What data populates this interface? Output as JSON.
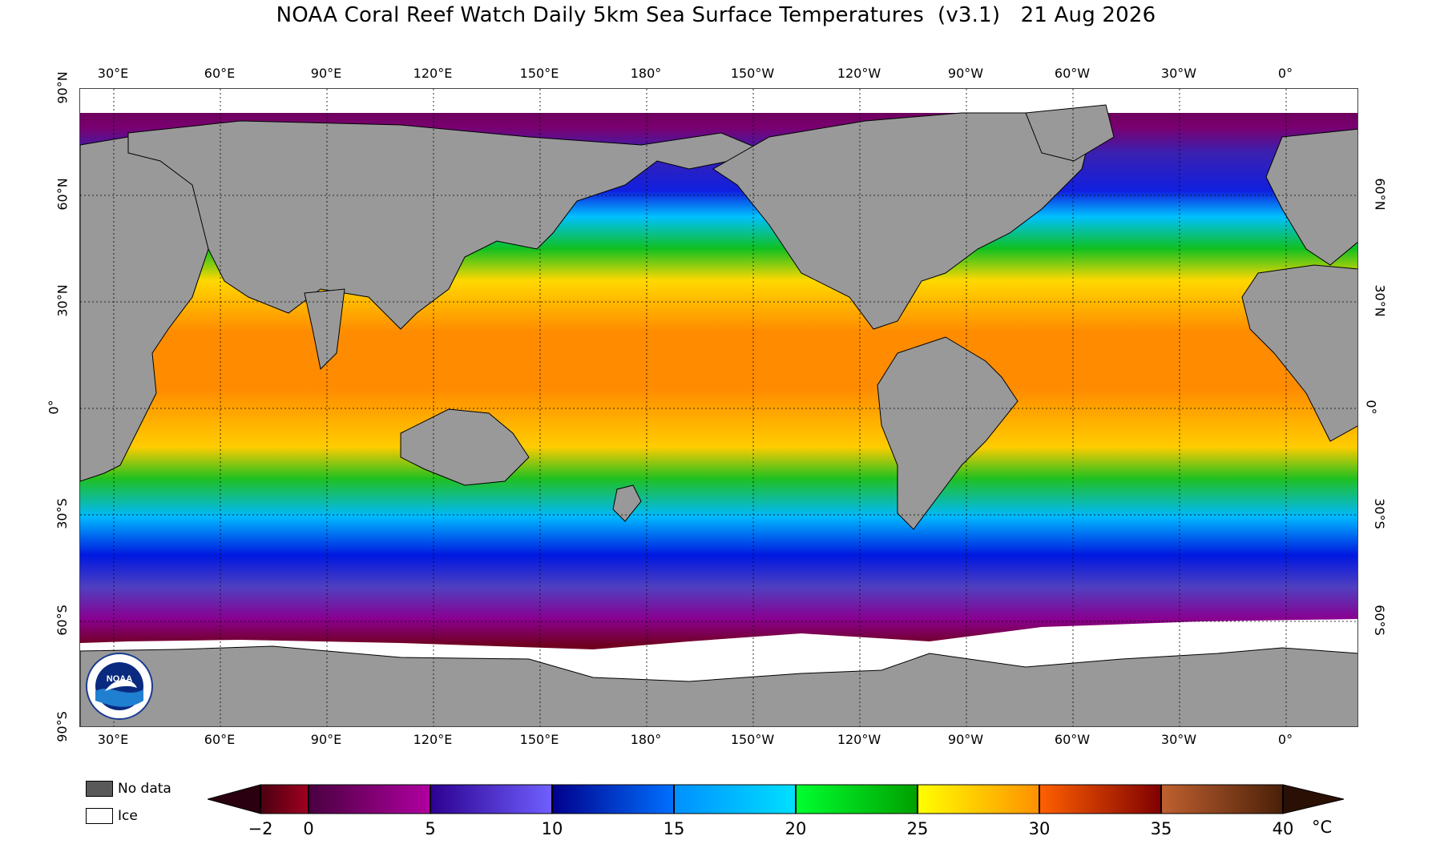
{
  "title": "NOAA Coral Reef Watch Daily 5km Sea Surface Temperatures  (v3.1)   21 Aug 2026",
  "longitude_labels": [
    "30°E",
    "60°E",
    "90°E",
    "120°E",
    "150°E",
    "180°",
    "150°W",
    "120°W",
    "90°W",
    "60°W",
    "30°W",
    "0°"
  ],
  "latitude_labels": [
    "90°N",
    "60°N",
    "30°N",
    "0°",
    "30°S",
    "60°S",
    "90°S"
  ],
  "legend": {
    "no_data_label": "No data",
    "ice_label": "Ice",
    "no_data_color": "#595959",
    "ice_color": "#ffffff"
  },
  "colorbar": {
    "unit": "°C",
    "tick_labels": [
      "−2",
      "0",
      "5",
      "10",
      "15",
      "20",
      "25",
      "30",
      "35",
      "40"
    ],
    "colors": {
      "cold_ext": "#2a0010",
      "m2_0": [
        "#4a0010",
        "#a00020"
      ],
      "0_5": [
        "#4a0040",
        "#b000a0"
      ],
      "5_10": [
        "#2c0090",
        "#7060ff"
      ],
      "10_15": [
        "#00008c",
        "#0070ff"
      ],
      "15_20": [
        "#0090ff",
        "#00e0ff"
      ],
      "20_25": [
        "#00ff30",
        "#00a000"
      ],
      "25_30": [
        "#ffff00",
        "#ff9000"
      ],
      "30_35": [
        "#ff6000",
        "#800000"
      ],
      "35_40": [
        "#c06030",
        "#4a2008"
      ],
      "hot_ext": "#2a1004"
    }
  },
  "land_color": "#999999",
  "logo_text": "NOAA"
}
